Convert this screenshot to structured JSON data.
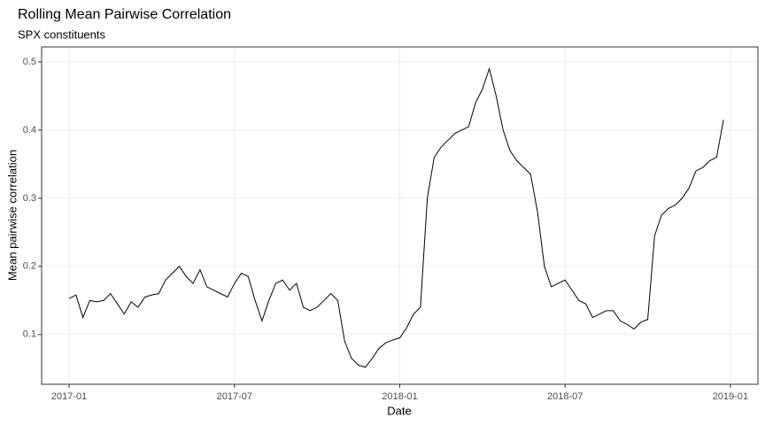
{
  "chart_data": {
    "type": "line",
    "title": "Rolling Mean Pairwise Correlation",
    "subtitle": "SPX constituents",
    "x_label": "Date",
    "y_label": "Mean pairwise correlation",
    "x": [
      "2017-01",
      "2017-01",
      "2017-01",
      "2017-01",
      "2017-02",
      "2017-02",
      "2017-02",
      "2017-02",
      "2017-03",
      "2017-03",
      "2017-03",
      "2017-03",
      "2017-04",
      "2017-04",
      "2017-04",
      "2017-04",
      "2017-05",
      "2017-05",
      "2017-05",
      "2017-05",
      "2017-06",
      "2017-06",
      "2017-06",
      "2017-06",
      "2017-07",
      "2017-07",
      "2017-07",
      "2017-07",
      "2017-08",
      "2017-08",
      "2017-08",
      "2017-08",
      "2017-09",
      "2017-09",
      "2017-09",
      "2017-09",
      "2017-10",
      "2017-10",
      "2017-10",
      "2017-10",
      "2017-11",
      "2017-11",
      "2017-11",
      "2017-11",
      "2017-12",
      "2017-12",
      "2017-12",
      "2017-12",
      "2018-01",
      "2018-01",
      "2018-01",
      "2018-01",
      "2018-02",
      "2018-02",
      "2018-02",
      "2018-02",
      "2018-03",
      "2018-03",
      "2018-03",
      "2018-03",
      "2018-04",
      "2018-04",
      "2018-04",
      "2018-04",
      "2018-05",
      "2018-05",
      "2018-05",
      "2018-05",
      "2018-06",
      "2018-06",
      "2018-06",
      "2018-06",
      "2018-07",
      "2018-07",
      "2018-07",
      "2018-07",
      "2018-08",
      "2018-08",
      "2018-08",
      "2018-08",
      "2018-09",
      "2018-09",
      "2018-09",
      "2018-09",
      "2018-10",
      "2018-10",
      "2018-10",
      "2018-10",
      "2018-11",
      "2018-11",
      "2018-11",
      "2018-11",
      "2018-12",
      "2018-12",
      "2018-12",
      "2018-12"
    ],
    "series": [
      {
        "color": "#000000",
        "values": [
          0.153,
          0.158,
          0.125,
          0.15,
          0.148,
          0.15,
          0.16,
          0.145,
          0.13,
          0.148,
          0.14,
          0.155,
          0.158,
          0.16,
          0.18,
          0.19,
          0.2,
          0.185,
          0.175,
          0.195,
          0.17,
          0.165,
          0.16,
          0.155,
          0.175,
          0.19,
          0.185,
          0.15,
          0.12,
          0.15,
          0.175,
          0.18,
          0.165,
          0.175,
          0.14,
          0.135,
          0.14,
          0.15,
          0.16,
          0.15,
          0.09,
          0.065,
          0.055,
          0.052,
          0.065,
          0.08,
          0.088,
          0.092,
          0.095,
          0.11,
          0.13,
          0.14,
          0.3,
          0.36,
          0.375,
          0.385,
          0.395,
          0.4,
          0.405,
          0.44,
          0.46,
          0.49,
          0.45,
          0.4,
          0.37,
          0.355,
          0.345,
          0.335,
          0.28,
          0.2,
          0.17,
          0.175,
          0.18,
          0.165,
          0.15,
          0.145,
          0.125,
          0.13,
          0.135,
          0.135,
          0.12,
          0.115,
          0.108,
          0.118,
          0.122,
          0.245,
          0.275,
          0.285,
          0.29,
          0.3,
          0.315,
          0.34,
          0.345,
          0.355,
          0.36,
          0.415
        ]
      }
    ],
    "xlim": [
      "2016-12",
      "2019-02"
    ],
    "xticks": [
      "2017-01",
      "2017-07",
      "2018-01",
      "2018-07",
      "2019-01"
    ],
    "ylim": [
      0.027,
      0.522
    ],
    "yticks": [
      0.1,
      0.2,
      0.3,
      0.4,
      0.5
    ],
    "grid": true
  }
}
